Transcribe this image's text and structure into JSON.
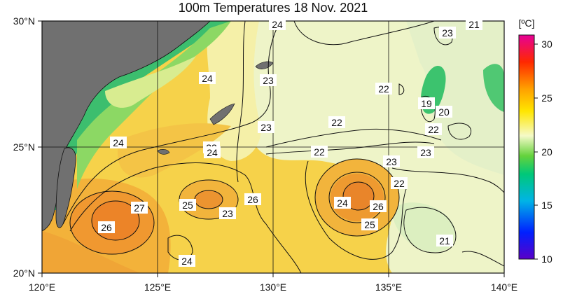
{
  "title": "100m Temperatures  18 Nov. 2021",
  "map": {
    "lat_labels": [
      "30°N",
      "25°N",
      "20°N"
    ],
    "lon_labels": [
      "120°E",
      "125°E",
      "130°E",
      "135°E",
      "140°E"
    ],
    "lon_range": [
      120,
      140
    ],
    "lat_range": [
      20,
      30
    ],
    "contour_labels": [
      "24",
      "21",
      "23",
      "24",
      "23",
      "22",
      "19",
      "20",
      "22",
      "23",
      "22",
      "24",
      "22",
      "24",
      "22",
      "23",
      "23",
      "22",
      "26",
      "24",
      "26",
      "25",
      "23",
      "27",
      "26",
      "24",
      "25",
      "21",
      "24"
    ]
  },
  "colorbar": {
    "unit": "[ºC]",
    "ticks": [
      "30",
      "25",
      "20",
      "15",
      "10"
    ],
    "range": [
      10,
      31
    ],
    "colors": [
      "#5a00c8",
      "#0040ff",
      "#00b4e6",
      "#00c878",
      "#50d23c",
      "#f5fac8",
      "#ffe600",
      "#ff9600",
      "#ff2800",
      "#e60096"
    ]
  },
  "colors": {
    "land": "#707070",
    "warm_core": "#f29a2a",
    "mid": "#f6d24a",
    "cool": "#e6f0c0",
    "coastal_green": "#46c882"
  }
}
